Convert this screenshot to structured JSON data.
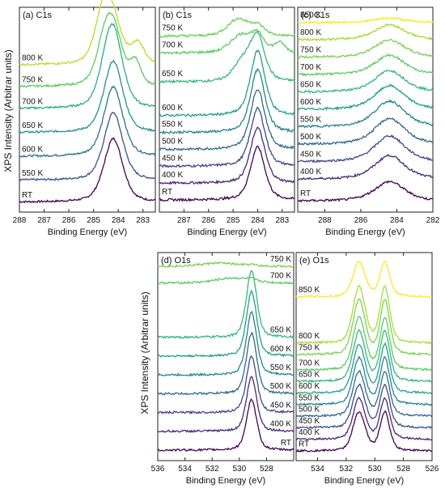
{
  "figure": {
    "ylabel_top": "XPS Intensity (Arbitrar units)",
    "ylabel_bottom": "XPS Intensity (Arbitrar units)"
  },
  "chart_data": [
    {
      "type": "line",
      "title": "(a) C1s",
      "xlabel": "Binding Energy (eV)",
      "xlim": [
        288,
        282.5
      ],
      "xticks": [
        288,
        287,
        286,
        285,
        284,
        283
      ],
      "peaks": [
        {
          "pos": 284.2,
          "width": 0.45,
          "shape": 0.45
        }
      ],
      "series": [
        {
          "name": "RT",
          "color": "#440154",
          "offset": 0,
          "amp": 1.6,
          "extra": []
        },
        {
          "name": "550 K",
          "color": "#3b528b",
          "offset": 0.55,
          "amp": 1.7,
          "extra": []
        },
        {
          "name": "600 K",
          "color": "#2c728e",
          "offset": 1.15,
          "amp": 1.75,
          "extra": []
        },
        {
          "name": "650 K",
          "color": "#21918c",
          "offset": 1.75,
          "amp": 1.8,
          "extra": []
        },
        {
          "name": "700 K",
          "color": "#28ae80",
          "offset": 2.35,
          "amp": 1.85,
          "extra": [
            {
              "pos": 284.5,
              "width": 0.4,
              "amp": 0.4
            }
          ]
        },
        {
          "name": "750 K",
          "color": "#5ec962",
          "offset": 2.9,
          "amp": 1.3,
          "extra": [
            {
              "pos": 284.55,
              "width": 0.4,
              "amp": 0.8
            },
            {
              "pos": 283.3,
              "width": 0.25,
              "amp": 0.55
            }
          ]
        },
        {
          "name": "800 K",
          "color": "#b5de2b",
          "offset": 3.45,
          "amp": 0.9,
          "extra": [
            {
              "pos": 284.6,
              "width": 0.4,
              "amp": 1.2
            },
            {
              "pos": 283.2,
              "width": 0.3,
              "amp": 0.5
            }
          ]
        }
      ]
    },
    {
      "type": "line",
      "title": "(b) C1s",
      "xlabel": "Binding Energy (eV)",
      "xlim": [
        288,
        282.5
      ],
      "xticks": [
        287,
        286,
        285,
        284,
        283
      ],
      "peaks": [
        {
          "pos": 284.0,
          "width": 0.35,
          "shape": 0.5
        }
      ],
      "series": [
        {
          "name": "RT",
          "color": "#440154",
          "offset": 0,
          "amp": 1.1,
          "extra": []
        },
        {
          "name": "400 K",
          "color": "#482878",
          "offset": 0.35,
          "amp": 1.15,
          "extra": []
        },
        {
          "name": "450 K",
          "color": "#3e4989",
          "offset": 0.7,
          "amp": 1.2,
          "extra": []
        },
        {
          "name": "500 K",
          "color": "#31688e",
          "offset": 1.05,
          "amp": 1.25,
          "extra": []
        },
        {
          "name": "550 K",
          "color": "#26828e",
          "offset": 1.4,
          "amp": 1.3,
          "extra": []
        },
        {
          "name": "600 K",
          "color": "#1f9e89",
          "offset": 1.75,
          "amp": 1.35,
          "extra": []
        },
        {
          "name": "650 K",
          "color": "#35b779",
          "offset": 2.45,
          "amp": 0.9,
          "extra": [
            {
              "pos": 284.6,
              "width": 0.45,
              "amp": 0.4
            }
          ]
        },
        {
          "name": "700 K",
          "color": "#5ec962",
          "offset": 3.05,
          "amp": 0.35,
          "extra": [
            {
              "pos": 284.7,
              "width": 0.5,
              "amp": 0.35
            },
            {
              "pos": 283.1,
              "width": 0.25,
              "amp": 0.2
            }
          ]
        },
        {
          "name": "750 K",
          "color": "#6ece58",
          "offset": 3.4,
          "amp": 0.2,
          "extra": [
            {
              "pos": 284.8,
              "width": 0.5,
              "amp": 0.35
            }
          ]
        }
      ]
    },
    {
      "type": "line",
      "title": "(c) C1s",
      "xlabel": "Binding Energy (eV)",
      "xlim": [
        289.5,
        282
      ],
      "xticks": [
        288,
        286,
        284,
        282
      ],
      "peaks": [
        {
          "pos": 284.4,
          "width": 1.0,
          "shape": 0.6
        }
      ],
      "series": [
        {
          "name": "RT",
          "color": "#440154",
          "offset": 0,
          "amp": 0.45,
          "extra": []
        },
        {
          "name": "400 K",
          "color": "#482878",
          "offset": 0.5,
          "amp": 0.55,
          "extra": []
        },
        {
          "name": "450 K",
          "color": "#3e4989",
          "offset": 0.9,
          "amp": 0.6,
          "extra": []
        },
        {
          "name": "500 K",
          "color": "#31688e",
          "offset": 1.3,
          "amp": 0.6,
          "extra": []
        },
        {
          "name": "550 K",
          "color": "#26828e",
          "offset": 1.7,
          "amp": 0.6,
          "extra": []
        },
        {
          "name": "600 K",
          "color": "#1f9e89",
          "offset": 2.1,
          "amp": 0.55,
          "extra": []
        },
        {
          "name": "650 K",
          "color": "#35b779",
          "offset": 2.5,
          "amp": 0.5,
          "extra": []
        },
        {
          "name": "700 K",
          "color": "#5ec962",
          "offset": 2.9,
          "amp": 0.45,
          "extra": []
        },
        {
          "name": "750 K",
          "color": "#7ad151",
          "offset": 3.3,
          "amp": 0.4,
          "extra": []
        },
        {
          "name": "800 K",
          "color": "#a5db36",
          "offset": 3.7,
          "amp": 0.35,
          "extra": []
        },
        {
          "name": "850 K",
          "color": "#fde725",
          "offset": 4.1,
          "amp": 0.1,
          "extra": []
        }
      ]
    },
    {
      "type": "line",
      "title": "(d) O1s",
      "xlabel": "Binding Energy (eV)",
      "xlim": [
        536,
        526
      ],
      "xticks": [
        536,
        534,
        532,
        530,
        528
      ],
      "peaks": [
        {
          "pos": 529.1,
          "width": 0.45,
          "shape": 0.4
        }
      ],
      "series": [
        {
          "name": "RT",
          "color": "#440154",
          "offset": 0,
          "amp": 1.2,
          "extra": []
        },
        {
          "name": "400 K",
          "color": "#482878",
          "offset": 0.45,
          "amp": 1.3,
          "extra": []
        },
        {
          "name": "450 K",
          "color": "#3e4989",
          "offset": 0.9,
          "amp": 1.35,
          "extra": []
        },
        {
          "name": "500 K",
          "color": "#31688e",
          "offset": 1.35,
          "amp": 1.45,
          "extra": []
        },
        {
          "name": "550 K",
          "color": "#26828e",
          "offset": 1.8,
          "amp": 1.5,
          "extra": []
        },
        {
          "name": "600 K",
          "color": "#1f9e89",
          "offset": 2.25,
          "amp": 1.55,
          "extra": []
        },
        {
          "name": "650 K",
          "color": "#35b779",
          "offset": 2.7,
          "amp": 1.6,
          "extra": []
        },
        {
          "name": "700 K",
          "color": "#5ec962",
          "offset": 4.0,
          "amp": 0.05,
          "extra": [
            {
              "pos": 530.5,
              "width": 1.5,
              "amp": 0.12
            }
          ]
        },
        {
          "name": "750 K",
          "color": "#7ad151",
          "offset": 4.4,
          "amp": 0.03,
          "extra": [
            {
              "pos": 531.5,
              "width": 1.5,
              "amp": 0.08
            }
          ]
        }
      ]
    },
    {
      "type": "line",
      "title": "(e) O1s",
      "xlabel": "Binding Energy (eV)",
      "xlim": [
        535.5,
        526
      ],
      "xticks": [
        534,
        532,
        530,
        528,
        526
      ],
      "peaks": [
        {
          "pos": 531.1,
          "width": 0.5,
          "shape": 0.3
        },
        {
          "pos": 529.3,
          "width": 0.4,
          "shape": 0.45
        }
      ],
      "series": [
        {
          "name": "RT",
          "color": "#440154",
          "offset": 0,
          "amp": 1.0,
          "extra": []
        },
        {
          "name": "400 K",
          "color": "#482878",
          "offset": 0.3,
          "amp": 1.05,
          "extra": []
        },
        {
          "name": "450 K",
          "color": "#3e4989",
          "offset": 0.6,
          "amp": 1.1,
          "extra": []
        },
        {
          "name": "500 K",
          "color": "#31688e",
          "offset": 0.9,
          "amp": 1.15,
          "extra": []
        },
        {
          "name": "550 K",
          "color": "#26828e",
          "offset": 1.2,
          "amp": 1.2,
          "extra": []
        },
        {
          "name": "600 K",
          "color": "#1f9e89",
          "offset": 1.5,
          "amp": 1.25,
          "extra": []
        },
        {
          "name": "650 K",
          "color": "#35b779",
          "offset": 1.8,
          "amp": 1.3,
          "extra": []
        },
        {
          "name": "700 K",
          "color": "#5ec962",
          "offset": 2.1,
          "amp": 1.35,
          "extra": []
        },
        {
          "name": "750 K",
          "color": "#7ad151",
          "offset": 2.5,
          "amp": 1.4,
          "extra": []
        },
        {
          "name": "800 K",
          "color": "#a5db36",
          "offset": 2.8,
          "amp": 1.45,
          "extra": []
        },
        {
          "name": "850 K",
          "color": "#fde725",
          "offset": 4.0,
          "amp": 0.9,
          "extra": []
        }
      ]
    }
  ]
}
